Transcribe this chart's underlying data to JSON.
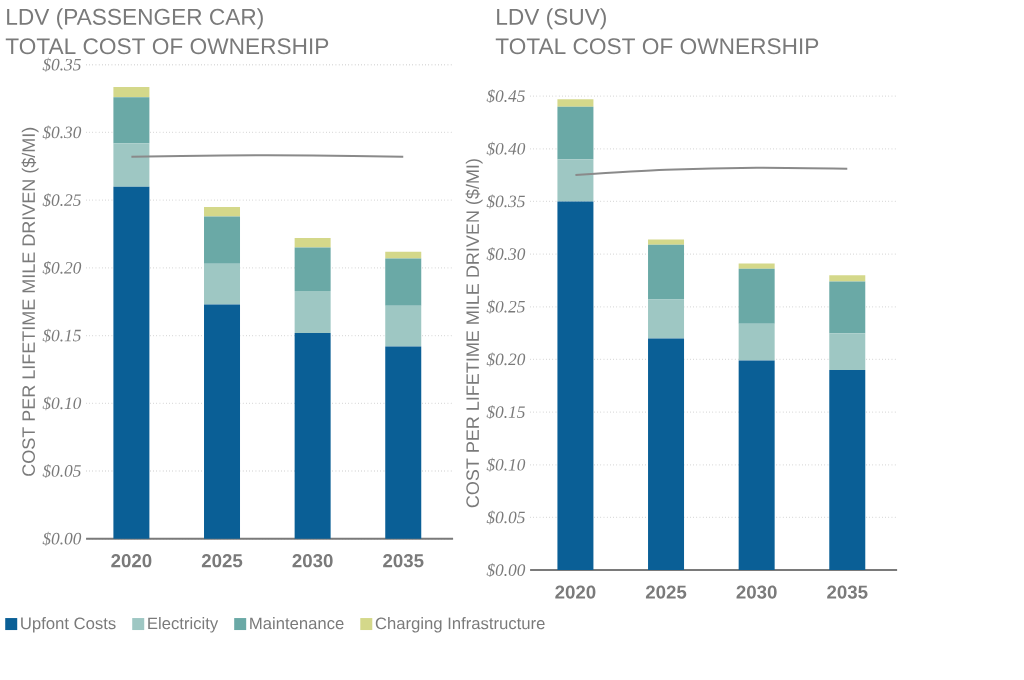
{
  "chart_data": [
    {
      "type": "bar",
      "title": "LDV (PASSENGER CAR)",
      "subtitle": "TOTAL COST OF OWNERSHIP",
      "ylabel": "COST PER LIFETIME MILE DRIVEN ($/MI)",
      "categories": [
        "2020",
        "2025",
        "2030",
        "2035"
      ],
      "stacked": true,
      "grid": "y",
      "legend": "bottom left",
      "ylim": [
        0,
        0.35
      ],
      "yticks": [
        {
          "value": 0,
          "label": "$0.00"
        },
        {
          "value": 0.05,
          "label": "$0.05"
        },
        {
          "value": 0.1,
          "label": "$0.10"
        },
        {
          "value": 0.15,
          "label": "$0.15"
        },
        {
          "value": 0.2,
          "label": "$0.20"
        },
        {
          "value": 0.25,
          "label": "$0.25"
        },
        {
          "value": 0.3,
          "label": "$0.30"
        },
        {
          "value": 0.35,
          "label": "$0.35"
        }
      ],
      "series": [
        {
          "name": "Upfont Costs",
          "color": "#0a5f96",
          "values": [
            0.26,
            0.173,
            0.152,
            0.142
          ]
        },
        {
          "name": "Electricity",
          "color": "#9ec7c3",
          "values": [
            0.032,
            0.03,
            0.031,
            0.03
          ]
        },
        {
          "name": "Maintenance",
          "color": "#6aa9a6",
          "values": [
            0.034,
            0.035,
            0.032,
            0.035
          ]
        },
        {
          "name": "Charging Infrastructure",
          "color": "#d4d88a",
          "values": [
            0.0075,
            0.007,
            0.007,
            0.005
          ]
        },
        {
          "type": "line",
          "color": "#8a8a8a",
          "values": [
            0.282,
            0.283,
            0.283,
            0.282
          ]
        }
      ]
    },
    {
      "type": "bar",
      "title": "LDV (SUV)",
      "subtitle": "TOTAL COST OF OWNERSHIP",
      "ylabel": "COST PER LIFETIME MILE DRIVEN ($/MI)",
      "categories": [
        "2020",
        "2025",
        "2030",
        "2035"
      ],
      "stacked": true,
      "grid": "y",
      "ylim": [
        0,
        0.45
      ],
      "yticks": [
        {
          "value": 0,
          "label": "$0.00"
        },
        {
          "value": 0.05,
          "label": "$0.05"
        },
        {
          "value": 0.1,
          "label": "$0.10"
        },
        {
          "value": 0.15,
          "label": "$0.15"
        },
        {
          "value": 0.2,
          "label": "$0.20"
        },
        {
          "value": 0.25,
          "label": "$0.25"
        },
        {
          "value": 0.3,
          "label": "$0.30"
        },
        {
          "value": 0.35,
          "label": "$0.35"
        },
        {
          "value": 0.4,
          "label": "$0.40"
        },
        {
          "value": 0.45,
          "label": "$0.45"
        }
      ],
      "series": [
        {
          "color": "#0a5f96",
          "values": [
            0.35,
            0.22,
            0.199,
            0.19
          ]
        },
        {
          "color": "#9ec7c3",
          "values": [
            0.04,
            0.037,
            0.035,
            0.035
          ]
        },
        {
          "color": "#6aa9a6",
          "values": [
            0.05,
            0.052,
            0.052,
            0.049
          ]
        },
        {
          "color": "#d4d88a",
          "values": [
            0.007,
            0.005,
            0.005,
            0.006
          ]
        },
        {
          "type": "line",
          "color": "#8a8a8a",
          "values": [
            0.375,
            0.38,
            0.382,
            0.381
          ]
        }
      ]
    }
  ]
}
